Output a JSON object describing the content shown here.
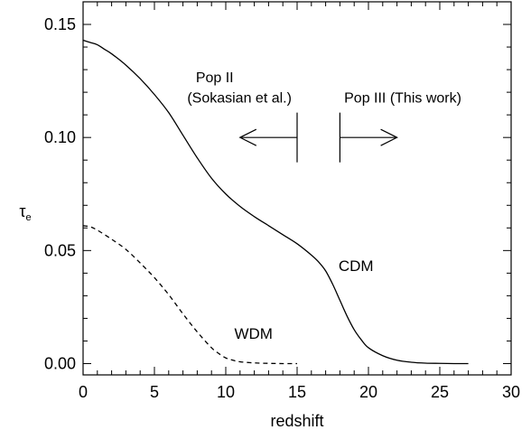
{
  "chart_data": {
    "type": "line",
    "title": "",
    "xlabel": "redshift",
    "ylabel": "τ",
    "ylabel_sub": "e",
    "xlim": [
      0,
      30
    ],
    "ylim": [
      -0.005,
      0.16
    ],
    "xticks": [
      0,
      5,
      10,
      15,
      20,
      25,
      30
    ],
    "yticks": [
      0.0,
      0.05,
      0.1,
      0.15
    ],
    "ytick_labels": [
      "0.00",
      "0.05",
      "0.10",
      "0.15"
    ],
    "grid": false,
    "series": [
      {
        "name": "CDM",
        "style": "solid",
        "color": "#000000",
        "x": [
          0,
          0.5,
          1,
          1.5,
          2,
          3,
          4,
          5,
          6,
          7,
          8,
          9,
          10,
          11,
          12,
          13,
          14,
          15,
          16,
          16.5,
          17,
          17.5,
          18,
          18.5,
          19,
          19.5,
          20,
          21,
          22,
          23,
          24,
          25,
          26,
          27
        ],
        "y": [
          0.143,
          0.142,
          0.141,
          0.139,
          0.137,
          0.132,
          0.126,
          0.119,
          0.111,
          0.101,
          0.091,
          0.082,
          0.075,
          0.0695,
          0.065,
          0.061,
          0.057,
          0.053,
          0.048,
          0.045,
          0.041,
          0.035,
          0.028,
          0.021,
          0.015,
          0.0105,
          0.007,
          0.0035,
          0.0015,
          0.0006,
          0.0002,
          0.0001,
          0.0,
          0.0
        ]
      },
      {
        "name": "WDM",
        "style": "dashed",
        "color": "#000000",
        "x": [
          0,
          0.5,
          1,
          2,
          3,
          4,
          5,
          6,
          7,
          8,
          9,
          9.5,
          10,
          10.5,
          11,
          12,
          13,
          14,
          15
        ],
        "y": [
          0.061,
          0.0605,
          0.059,
          0.055,
          0.0505,
          0.0445,
          0.038,
          0.0305,
          0.022,
          0.014,
          0.007,
          0.0045,
          0.0025,
          0.0015,
          0.0008,
          0.0003,
          0.0001,
          0.0,
          0.0
        ]
      }
    ],
    "series_labels": [
      {
        "text": "CDM",
        "x": 17.9,
        "y": 0.041
      },
      {
        "text": "WDM",
        "x": 10.6,
        "y": 0.011
      }
    ],
    "annotations": [
      {
        "text": "Pop II",
        "x": 7.9,
        "y": 0.1245
      },
      {
        "text": "(Sokasian et al.)",
        "x": 7.3,
        "y": 0.1155
      },
      {
        "text": "Pop III (This work)",
        "x": 18.3,
        "y": 0.1155
      }
    ],
    "arrows": [
      {
        "name": "pop2",
        "bar_x": 15,
        "tip_x": 11,
        "y": 0.1,
        "bar_y": [
          0.089,
          0.111
        ]
      },
      {
        "name": "pop3",
        "bar_x": 18,
        "tip_x": 22,
        "y": 0.1,
        "bar_y": [
          0.089,
          0.111
        ]
      }
    ]
  }
}
